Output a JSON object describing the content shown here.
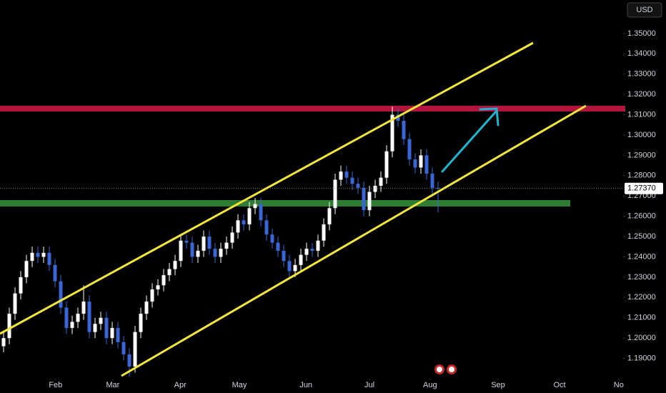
{
  "chart_data": {
    "type": "candlestick",
    "currency": "USD",
    "open": [
      1.196,
      1.2,
      1.212,
      1.222,
      1.23,
      1.238,
      1.242,
      1.24,
      1.242,
      1.236,
      1.228,
      1.215,
      1.205,
      1.208,
      1.212,
      1.218,
      1.203,
      1.207,
      1.21,
      1.2,
      1.205,
      1.198,
      1.192,
      1.186,
      1.203,
      1.212,
      1.218,
      1.224,
      1.226,
      1.231,
      1.234,
      1.238,
      1.248,
      1.247,
      1.24,
      1.243,
      1.25,
      1.244,
      1.24,
      1.244,
      1.247,
      1.252,
      1.258,
      1.256,
      1.264,
      1.266,
      1.258,
      1.251,
      1.247,
      1.243,
      1.238,
      1.233,
      1.236,
      1.241,
      1.244,
      1.243,
      1.248,
      1.256,
      1.264,
      1.278,
      1.282,
      1.279,
      1.276,
      1.274,
      1.263,
      1.272,
      1.275,
      1.279,
      1.292,
      1.31,
      1.307,
      1.298,
      1.288,
      1.284,
      1.29,
      1.281,
      1.274
    ],
    "high": [
      1.203,
      1.215,
      1.225,
      1.233,
      1.241,
      1.245,
      1.245,
      1.245,
      1.245,
      1.239,
      1.231,
      1.218,
      1.211,
      1.215,
      1.226,
      1.221,
      1.21,
      1.213,
      1.213,
      1.208,
      1.208,
      1.201,
      1.195,
      1.206,
      1.215,
      1.221,
      1.227,
      1.229,
      1.234,
      1.237,
      1.241,
      1.251,
      1.251,
      1.25,
      1.246,
      1.253,
      1.253,
      1.247,
      1.247,
      1.25,
      1.255,
      1.261,
      1.261,
      1.267,
      1.269,
      1.269,
      1.261,
      1.254,
      1.25,
      1.246,
      1.241,
      1.239,
      1.244,
      1.247,
      1.247,
      1.251,
      1.259,
      1.267,
      1.281,
      1.285,
      1.285,
      1.282,
      1.279,
      1.277,
      1.275,
      1.278,
      1.282,
      1.295,
      1.314,
      1.313,
      1.31,
      1.301,
      1.291,
      1.293,
      1.293,
      1.284,
      1.277
    ],
    "low": [
      1.193,
      1.197,
      1.209,
      1.219,
      1.227,
      1.235,
      1.237,
      1.237,
      1.233,
      1.225,
      1.212,
      1.202,
      1.202,
      1.205,
      1.209,
      1.2,
      1.2,
      1.204,
      1.197,
      1.197,
      1.195,
      1.189,
      1.181,
      1.183,
      1.2,
      1.209,
      1.215,
      1.221,
      1.223,
      1.228,
      1.231,
      1.235,
      1.244,
      1.237,
      1.237,
      1.24,
      1.241,
      1.237,
      1.237,
      1.241,
      1.244,
      1.249,
      1.253,
      1.253,
      1.261,
      1.255,
      1.248,
      1.244,
      1.24,
      1.235,
      1.23,
      1.23,
      1.233,
      1.238,
      1.24,
      1.24,
      1.245,
      1.253,
      1.261,
      1.275,
      1.276,
      1.273,
      1.271,
      1.26,
      1.26,
      1.269,
      1.272,
      1.276,
      1.289,
      1.304,
      1.295,
      1.285,
      1.281,
      1.281,
      1.278,
      1.271,
      1.262
    ],
    "close": [
      1.2,
      1.212,
      1.222,
      1.23,
      1.238,
      1.242,
      1.24,
      1.242,
      1.236,
      1.228,
      1.215,
      1.205,
      1.208,
      1.212,
      1.218,
      1.203,
      1.207,
      1.21,
      1.2,
      1.205,
      1.198,
      1.192,
      1.186,
      1.203,
      1.212,
      1.218,
      1.224,
      1.226,
      1.231,
      1.234,
      1.238,
      1.248,
      1.247,
      1.24,
      1.243,
      1.25,
      1.244,
      1.24,
      1.244,
      1.247,
      1.252,
      1.258,
      1.256,
      1.264,
      1.266,
      1.258,
      1.251,
      1.247,
      1.243,
      1.238,
      1.233,
      1.236,
      1.241,
      1.244,
      1.243,
      1.248,
      1.256,
      1.264,
      1.278,
      1.282,
      1.279,
      1.276,
      1.274,
      1.263,
      1.272,
      1.275,
      1.279,
      1.292,
      1.31,
      1.307,
      1.298,
      1.288,
      1.284,
      1.29,
      1.281,
      1.274,
      1.2737
    ],
    "up_color": "#ffffff",
    "down_color": "#3a66d6",
    "last_price": {
      "value": 1.2737,
      "label": "1.27370"
    },
    "ylim": [
      1.18,
      1.3665
    ],
    "yticks": [
      {
        "value": 1.19,
        "label": "1.19000"
      },
      {
        "value": 1.2,
        "label": "1.20000"
      },
      {
        "value": 1.21,
        "label": "1.21000"
      },
      {
        "value": 1.22,
        "label": "1.22000"
      },
      {
        "value": 1.23,
        "label": "1.23000"
      },
      {
        "value": 1.24,
        "label": "1.24000"
      },
      {
        "value": 1.25,
        "label": "1.25000"
      },
      {
        "value": 1.26,
        "label": "1.26000"
      },
      {
        "value": 1.27,
        "label": "1.27000"
      },
      {
        "value": 1.28,
        "label": "1.28000"
      },
      {
        "value": 1.29,
        "label": "1.29000"
      },
      {
        "value": 1.3,
        "label": "1.30000"
      },
      {
        "value": 1.31,
        "label": "1.31000"
      },
      {
        "value": 1.32,
        "label": "1.32000"
      },
      {
        "value": 1.33,
        "label": "1.33000"
      },
      {
        "value": 1.34,
        "label": "1.34000"
      },
      {
        "value": 1.35,
        "label": "1.35000"
      }
    ],
    "xlim": [
      -0.625,
      108.375
    ],
    "xticks": [
      {
        "value": 9.1,
        "label": "Feb"
      },
      {
        "value": 19.1,
        "label": "Mar"
      },
      {
        "value": 30.9,
        "label": "Apr"
      },
      {
        "value": 41.25,
        "label": "May"
      },
      {
        "value": 52.9,
        "label": "Jun"
      },
      {
        "value": 64,
        "label": "Jul"
      },
      {
        "value": 74.6,
        "label": "Aug"
      },
      {
        "value": 86.5,
        "label": "Sep"
      },
      {
        "value": 97.25,
        "label": "Oct"
      },
      {
        "value": 107.6,
        "label": "No"
      }
    ]
  }
}
